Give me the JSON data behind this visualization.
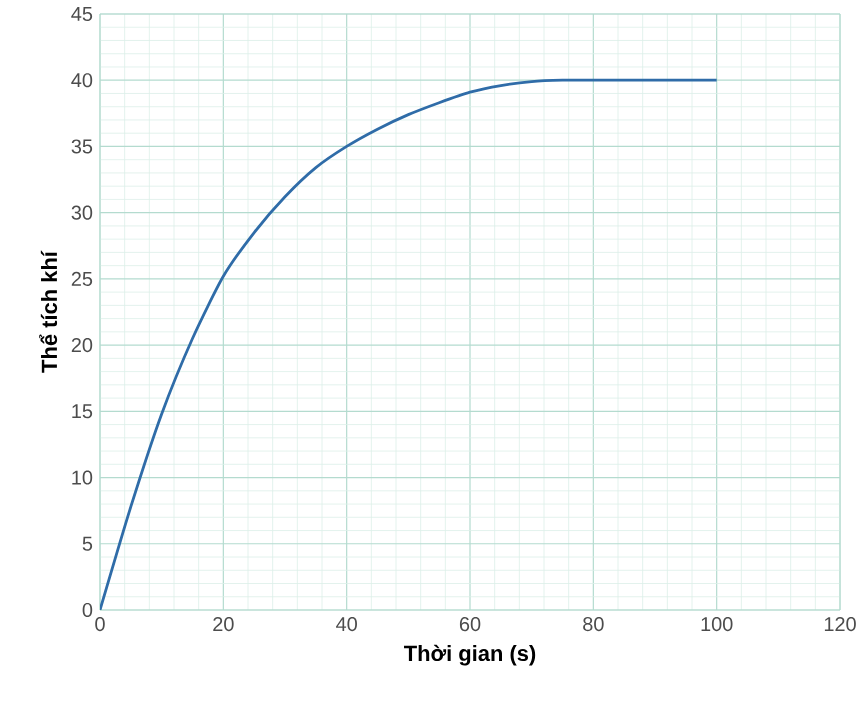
{
  "chart_data": {
    "type": "line",
    "xlabel": "Thời gian (s)",
    "ylabel": "Thể tích khí",
    "x": [
      0,
      5,
      10,
      15,
      20,
      25,
      30,
      35,
      40,
      45,
      50,
      55,
      60,
      65,
      70,
      75,
      80,
      90,
      100
    ],
    "values": [
      0,
      7.8,
      14.8,
      20.5,
      25.2,
      28.5,
      31.2,
      33.4,
      35,
      36.3,
      37.4,
      38.3,
      39.1,
      39.6,
      39.9,
      40,
      40,
      40,
      40
    ],
    "color": "#2f6ca8",
    "xlim": [
      0,
      120
    ],
    "ylim": [
      0,
      45
    ],
    "xticks": [
      0,
      20,
      40,
      60,
      80,
      100,
      120
    ],
    "yticks": [
      0,
      5,
      10,
      15,
      20,
      25,
      30,
      35,
      40,
      45
    ],
    "grid": true
  }
}
